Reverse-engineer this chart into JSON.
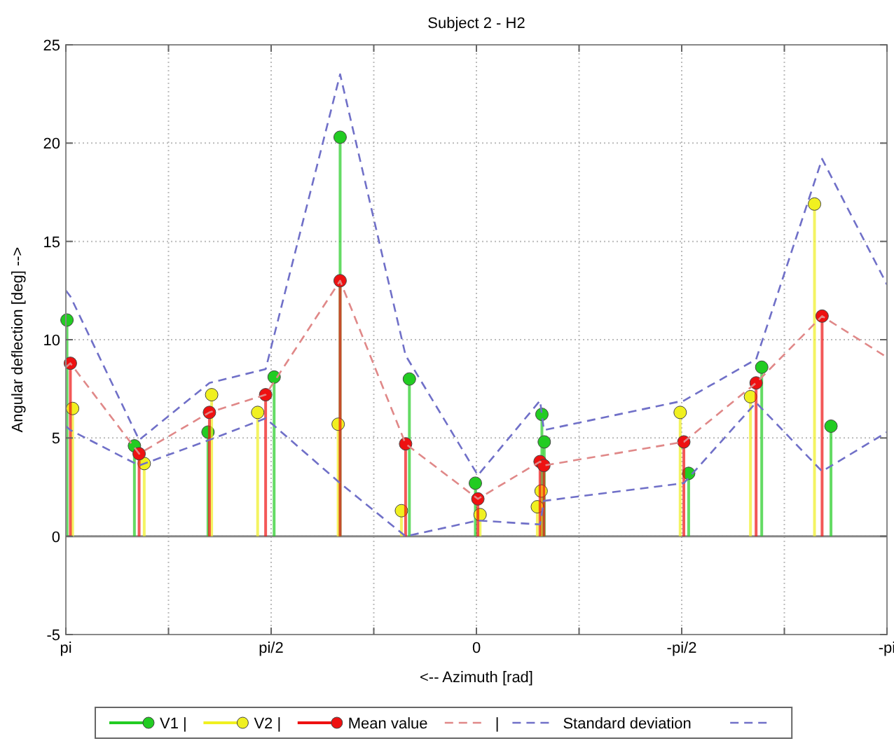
{
  "chart_data": {
    "type": "lollipop",
    "title": "Subject 2 - H2",
    "xlabel": "<--  Azimuth [rad]",
    "ylabel": "Angular deflection [deg]  -->",
    "xlim": [
      3.1416,
      -3.1416
    ],
    "xticks": [
      {
        "value": 3.1416,
        "label": "pi"
      },
      {
        "value": 2.3562,
        "label": null
      },
      {
        "value": 1.5708,
        "label": "pi/2"
      },
      {
        "value": 0.7854,
        "label": null
      },
      {
        "value": 0,
        "label": "0"
      },
      {
        "value": -0.7854,
        "label": null
      },
      {
        "value": -1.5708,
        "label": "-pi/2"
      },
      {
        "value": -2.3562,
        "label": null
      },
      {
        "value": -3.1416,
        "label": "-pi"
      }
    ],
    "ylim": [
      -5,
      25
    ],
    "yticks": [
      -5,
      0,
      5,
      10,
      15,
      20,
      25
    ],
    "grid": true,
    "marker": "circle",
    "legend": "bottom",
    "series": [
      {
        "name": "V1 |",
        "color": "#22cc22",
        "x": [
          3.133,
          2.617,
          2.054,
          1.548,
          1.043,
          0.513,
          0.008,
          -0.501,
          -0.519,
          -1.624,
          -2.183,
          -2.713
        ],
        "values": [
          11.0,
          4.6,
          5.3,
          8.1,
          20.3,
          8.0,
          2.7,
          6.2,
          4.8,
          3.2,
          8.6,
          5.6
        ]
      },
      {
        "name": "V2 |",
        "color": "#f0f020",
        "x": [
          3.09,
          2.542,
          2.026,
          1.674,
          1.058,
          0.574,
          -0.028,
          -0.466,
          -0.495,
          -1.559,
          -2.097,
          -2.587
        ],
        "values": [
          6.5,
          3.7,
          7.2,
          6.3,
          5.7,
          1.3,
          1.1,
          1.5,
          2.3,
          6.3,
          7.1,
          16.9
        ]
      },
      {
        "name": "Mean value",
        "color": "#ee1111",
        "x": [
          3.107,
          2.581,
          2.043,
          1.613,
          1.043,
          0.542,
          -0.011,
          -0.487,
          -0.516,
          -1.587,
          -2.14,
          -2.645
        ],
        "values": [
          8.8,
          4.2,
          6.3,
          7.2,
          13.0,
          4.7,
          1.9,
          3.8,
          3.6,
          4.8,
          7.8,
          11.2
        ]
      },
      {
        "name": "|",
        "type": "line",
        "line_style": "dashed",
        "marker": "none",
        "color": "#e08888",
        "x": [
          3.1416,
          3.107,
          2.581,
          2.043,
          1.613,
          1.043,
          0.542,
          -0.011,
          -0.487,
          -0.516,
          -1.587,
          -2.14,
          -2.645,
          -3.1416
        ],
        "values": [
          8.6,
          8.8,
          4.2,
          6.3,
          7.2,
          13.0,
          4.7,
          1.9,
          3.8,
          3.6,
          4.8,
          7.8,
          11.2,
          9.1
        ]
      },
      {
        "name": "Standard deviation",
        "type": "line",
        "line_style": "dashed",
        "marker": "none",
        "color": "#7070c8",
        "x": [
          3.1416,
          3.107,
          2.581,
          2.043,
          1.613,
          1.043,
          0.542,
          -0.011,
          -0.487,
          -0.516,
          -1.587,
          -2.14,
          -2.645,
          -3.1416
        ],
        "values": [
          12.5,
          12.2,
          4.9,
          7.8,
          8.5,
          23.5,
          9.2,
          3.1,
          6.9,
          5.4,
          6.9,
          9.0,
          19.2,
          12.8
        ]
      },
      {
        "type": "line",
        "line_style": "dashed",
        "marker": "none",
        "color": "#7070c8",
        "x": [
          3.1416,
          3.107,
          2.581,
          2.043,
          1.613,
          1.043,
          0.542,
          -0.011,
          -0.487,
          -0.516,
          -1.587,
          -2.14,
          -2.645,
          -3.1416
        ],
        "values": [
          5.6,
          5.4,
          3.6,
          4.9,
          6.0,
          2.7,
          0.0,
          0.8,
          0.6,
          1.8,
          2.7,
          6.8,
          3.3,
          5.3
        ]
      }
    ]
  }
}
